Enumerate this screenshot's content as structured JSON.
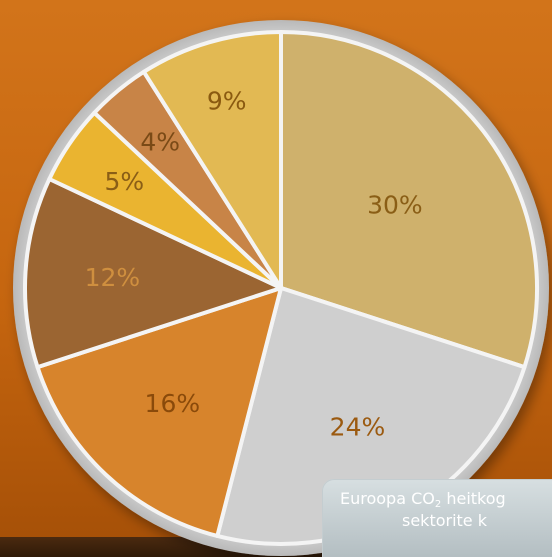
{
  "chart_data": {
    "type": "pie",
    "values": [
      30,
      24,
      16,
      12,
      5,
      4,
      9
    ],
    "labels": [
      "30%",
      "24%",
      "16%",
      "12%",
      "5%",
      "4%",
      "9%"
    ],
    "colors": [
      "#cfb16c",
      "#cfcfcf",
      "#d7842c",
      "#9b6532",
      "#eab430",
      "#c88447",
      "#e2b953"
    ],
    "label_colors": [
      "#8a5e16",
      "#9b5a10",
      "#8a4a0a",
      "#cf8f3f",
      "#8a5e16",
      "#7a4a16",
      "#8a5a10"
    ]
  },
  "caption": {
    "line1_before_sub": "Euroopa CO",
    "subscript": "2",
    "line1_after_sub": " heitkog",
    "line2": "sektorite k"
  }
}
